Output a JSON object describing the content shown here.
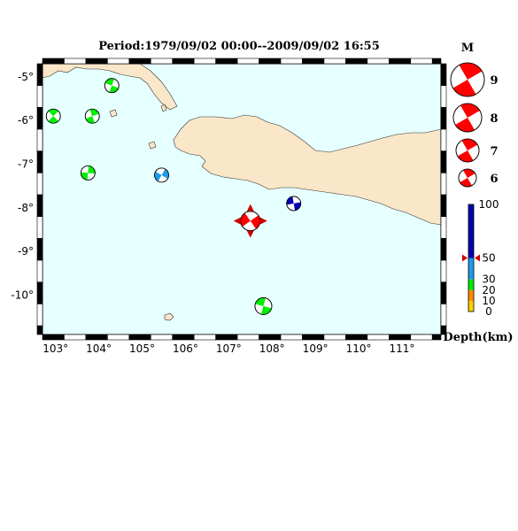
{
  "map": {
    "title": "Period:1979/09/02 00:00--2009/09/02 16:55",
    "lon_range": [
      102.7,
      111.9
    ],
    "lat_range": [
      -10.9,
      -4.7
    ],
    "lon_ticks": [
      "103°",
      "104°",
      "105°",
      "106°",
      "107°",
      "108°",
      "109°",
      "110°",
      "111°"
    ],
    "lat_ticks": [
      "-5°",
      "-6°",
      "-7°",
      "-8°",
      "-9°",
      "-10°"
    ],
    "colors": {
      "sea": "#e6ffff",
      "land": "#fae6c8",
      "compression": "#ff0000"
    },
    "events": [
      {
        "lon": 104.3,
        "lat": -5.2,
        "mag": 6,
        "depth": 20,
        "color": "#00ee00"
      },
      {
        "lon": 102.95,
        "lat": -5.9,
        "mag": 6,
        "depth": 20,
        "color": "#00ee00"
      },
      {
        "lon": 103.85,
        "lat": -5.9,
        "mag": 6,
        "depth": 20,
        "color": "#00ee00"
      },
      {
        "lon": 103.75,
        "lat": -7.2,
        "mag": 6,
        "depth": 20,
        "color": "#00ee00"
      },
      {
        "lon": 105.45,
        "lat": -7.25,
        "mag": 6,
        "depth": 40,
        "color": "#1e9be8"
      },
      {
        "lon": 107.5,
        "lat": -8.3,
        "mag": 7,
        "depth": 50,
        "color": "#ff0000",
        "highlight": true
      },
      {
        "lon": 108.5,
        "lat": -7.9,
        "mag": 6,
        "depth": 100,
        "color": "#0000b4"
      },
      {
        "lon": 107.8,
        "lat": -10.25,
        "mag": 6.5,
        "depth": 20,
        "color": "#00ee00"
      }
    ]
  },
  "legend": {
    "mag_title": "M",
    "mags": [
      {
        "label": "9",
        "mag": 9
      },
      {
        "label": "8",
        "mag": 8
      },
      {
        "label": "7",
        "mag": 7
      },
      {
        "label": "6",
        "mag": 6
      }
    ],
    "depth_title": "Depth(km)",
    "depth_scale": [
      {
        "label": "100",
        "value": 100
      },
      {
        "label": "50",
        "value": 50
      },
      {
        "label": "30",
        "value": 30
      },
      {
        "label": "20",
        "value": 20
      },
      {
        "label": "10",
        "value": 10
      },
      {
        "label": "0",
        "value": 0
      }
    ],
    "depth_marker": 50
  }
}
